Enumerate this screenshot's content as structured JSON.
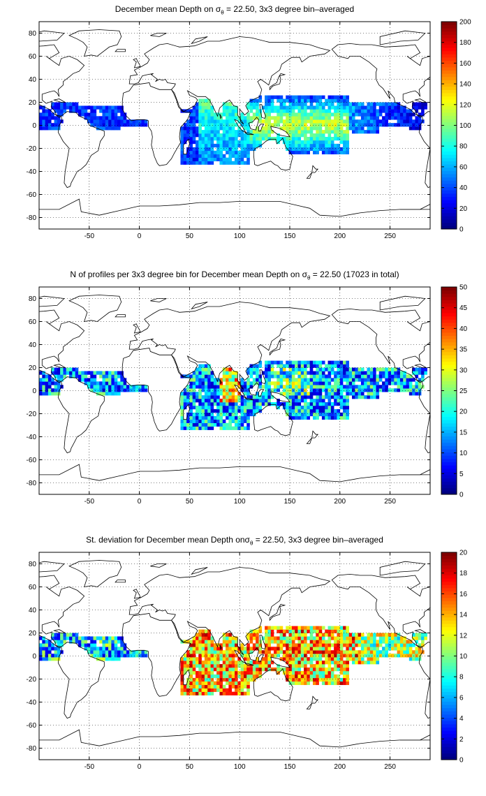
{
  "panels": [
    {
      "id": "mean",
      "title": {
        "pre": "December mean Depth on σ",
        "sub": "θ",
        "post": " = 22.50, 3x3 degree bin–averaged"
      },
      "colorbar": {
        "min": 0,
        "max": 200,
        "ticks": [
          "0",
          "20",
          "40",
          "60",
          "80",
          "100",
          "120",
          "140",
          "160",
          "180",
          "200"
        ]
      }
    },
    {
      "id": "count",
      "title": {
        "pre": "N of profiles per 3x3 degree bin for December mean Depth on σ",
        "sub": "θ",
        "post": " = 22.50 (17023 in total)"
      },
      "colorbar": {
        "min": 0,
        "max": 50,
        "ticks": [
          "0",
          "5",
          "10",
          "15",
          "20",
          "25",
          "30",
          "35",
          "40",
          "45",
          "50"
        ]
      }
    },
    {
      "id": "std",
      "title": {
        "pre": "St. deviation for December mean Depth onσ",
        "sub": "θ",
        "post": " = 22.50, 3x3 degree bin–averaged"
      },
      "colorbar": {
        "min": 0,
        "max": 20,
        "ticks": [
          "0",
          "2",
          "4",
          "6",
          "8",
          "10",
          "12",
          "14",
          "16",
          "18",
          "20"
        ]
      }
    }
  ],
  "axes": {
    "x_range": [
      -100,
      290
    ],
    "y_range": [
      -90,
      90
    ],
    "x_ticks": [
      "-50",
      "0",
      "50",
      "100",
      "150",
      "200",
      "250"
    ],
    "y_ticks": [
      "80",
      "60",
      "40",
      "20",
      "0",
      "-20",
      "-40",
      "-60",
      "-80"
    ],
    "grid": "dotted"
  },
  "colormap": "jet"
}
